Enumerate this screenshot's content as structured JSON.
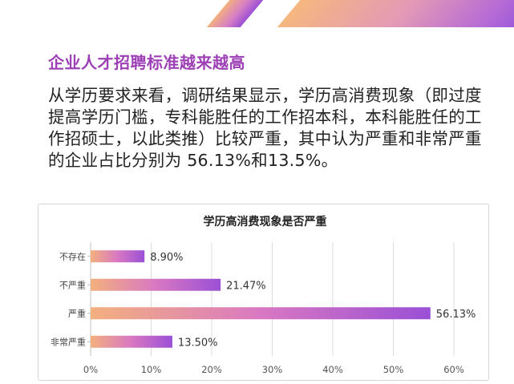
{
  "page": {
    "heading": "企业人才招聘标准越来越高",
    "paragraph": "从学历要求来看，调研结果显示，学历高消费现象（即过度提高学历门槛，专科能胜任的工作招本科，本科能胜任的工作招硕士，以此类推）比较严重，其中认为严重和非常严重的企业占比分别为 56.13%和13.5%。"
  },
  "colors": {
    "heading": "#9d3fb5",
    "bar_start": "#f3b07e",
    "bar_mid": "#d978c2",
    "bar_end": "#9a50d6"
  },
  "chart_data": {
    "type": "bar",
    "orientation": "horizontal",
    "title": "学历高消费现象是否严重",
    "categories": [
      "不存在",
      "不严重",
      "严重",
      "非常严重"
    ],
    "values": [
      8.9,
      21.47,
      56.13,
      13.5
    ],
    "value_labels": [
      "8.90%",
      "21.47%",
      "56.13%",
      "13.50%"
    ],
    "x_ticks": [
      "0%",
      "10%",
      "20%",
      "30%",
      "40%",
      "50%",
      "60%"
    ],
    "xlim": [
      0,
      60
    ],
    "grid": true,
    "legend": "none"
  }
}
